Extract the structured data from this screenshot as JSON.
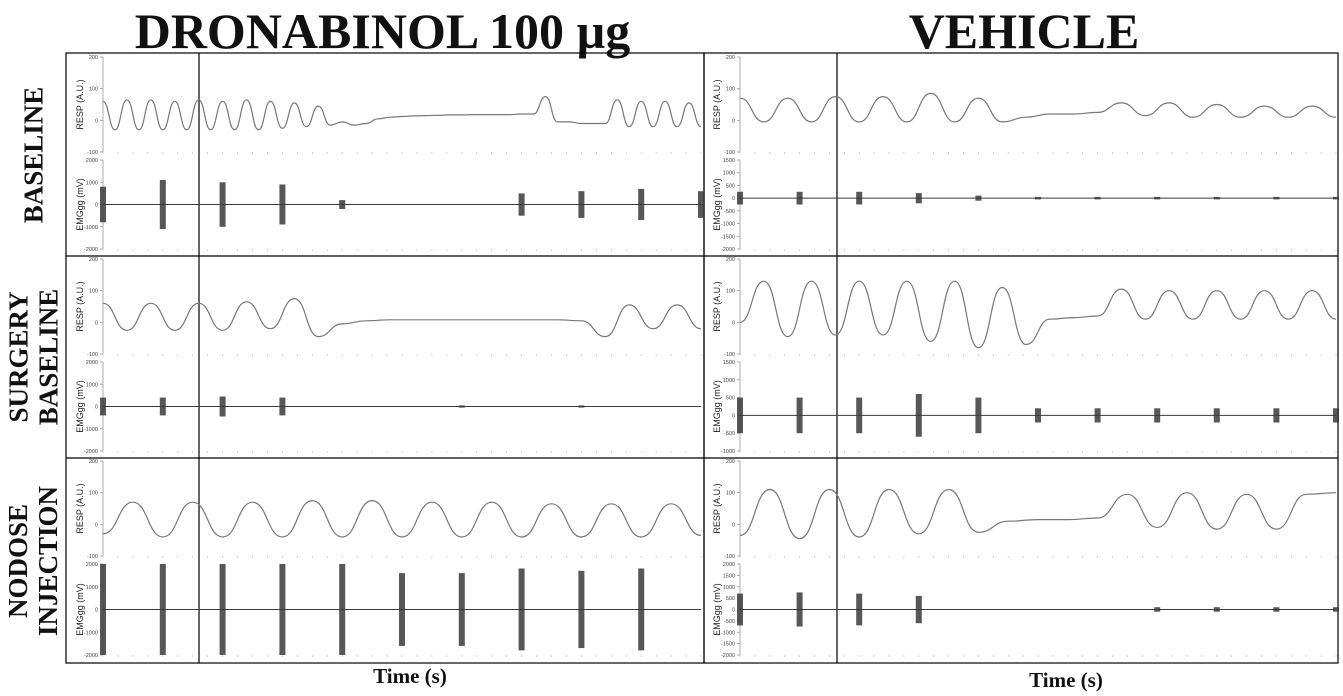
{
  "columns": [
    {
      "title": "DRONABINOL 100 µg",
      "xlabel": "Time (s)"
    },
    {
      "title": "VEHICLE",
      "xlabel": "Time (s)"
    }
  ],
  "rows": [
    {
      "label_lines": [
        "BASELINE"
      ]
    },
    {
      "label_lines": [
        "SURGERY",
        "BASELINE"
      ]
    },
    {
      "label_lines": [
        "NODOSE",
        "INJECTION"
      ]
    }
  ],
  "colors": {
    "trace": "#777777",
    "emg": "#3a3a3a",
    "frame": "#000000",
    "grid": "#c8c8c8"
  },
  "chart_data": [
    {
      "type": "line",
      "panel": "dronabinol-baseline-resp",
      "ylabel": "RESP (A.U.)",
      "ylim": [
        -100,
        200
      ],
      "yticks": [
        -100,
        0,
        100,
        200
      ],
      "x": [
        0,
        0.02,
        0.04,
        0.06,
        0.08,
        0.1,
        0.12,
        0.14,
        0.16,
        0.18,
        0.2,
        0.22,
        0.24,
        0.26,
        0.28,
        0.3,
        0.32,
        0.34,
        0.36,
        0.38,
        0.4,
        0.42,
        0.44,
        0.46,
        0.48,
        0.5,
        0.52,
        0.54,
        0.56,
        0.58,
        0.6,
        0.62,
        0.64,
        0.66,
        0.68,
        0.7,
        0.72,
        0.74,
        0.76,
        0.78,
        0.8,
        0.82,
        0.84,
        0.86,
        0.88,
        0.9,
        0.92,
        0.94,
        0.96,
        0.98,
        1
      ],
      "y": [
        60,
        -30,
        65,
        -30,
        65,
        -30,
        60,
        -30,
        65,
        -30,
        60,
        -30,
        65,
        -30,
        60,
        -25,
        55,
        -20,
        45,
        -15,
        -5,
        -15,
        -10,
        5,
        10,
        12,
        14,
        15,
        16,
        17,
        17,
        18,
        18,
        18,
        18,
        20,
        20,
        75,
        -5,
        -5,
        -10,
        -10,
        -10,
        65,
        -20,
        60,
        -20,
        60,
        -20,
        55,
        -20
      ]
    },
    {
      "type": "line",
      "panel": "dronabinol-baseline-emg",
      "ylabel": "EMGgg (mV)",
      "ylim": [
        -2000,
        2000
      ],
      "yticks": [
        -2000,
        -1000,
        0,
        1000,
        2000
      ],
      "x": [
        0,
        0.1,
        0.2,
        0.3,
        0.4,
        0.5,
        0.6,
        0.7,
        0.8,
        0.9,
        1
      ],
      "y": [
        800,
        1100,
        1000,
        900,
        200,
        0,
        0,
        500,
        600,
        700,
        600
      ]
    },
    {
      "type": "line",
      "panel": "dronabinol-surgery-resp",
      "ylabel": "RESP (A.U.)",
      "ylim": [
        -100,
        200
      ],
      "yticks": [
        -100,
        0,
        100,
        200
      ],
      "x": [
        0,
        0.04,
        0.08,
        0.12,
        0.16,
        0.2,
        0.24,
        0.28,
        0.32,
        0.36,
        0.4,
        0.44,
        0.48,
        0.52,
        0.56,
        0.6,
        0.64,
        0.68,
        0.72,
        0.76,
        0.8,
        0.84,
        0.88,
        0.92,
        0.96,
        1
      ],
      "y": [
        60,
        -25,
        60,
        -25,
        60,
        -25,
        65,
        -20,
        75,
        -45,
        -5,
        5,
        8,
        8,
        8,
        8,
        8,
        8,
        8,
        8,
        5,
        -45,
        55,
        -20,
        55,
        -20
      ]
    },
    {
      "type": "line",
      "panel": "dronabinol-surgery-emg",
      "ylabel": "EMGgg (mV)",
      "ylim": [
        -2000,
        2000
      ],
      "yticks": [
        -2000,
        -1000,
        0,
        1000,
        2000
      ],
      "x": [
        0,
        0.1,
        0.2,
        0.3,
        0.4,
        0.5,
        0.6,
        0.7,
        0.8,
        0.9,
        1
      ],
      "y": [
        400,
        400,
        450,
        400,
        0,
        0,
        50,
        0,
        50,
        0,
        0
      ]
    },
    {
      "type": "line",
      "panel": "dronabinol-nodose-resp",
      "ylabel": "RESP (A.U.)",
      "ylim": [
        -100,
        200
      ],
      "yticks": [
        -100,
        0,
        100,
        200
      ],
      "x": [
        0,
        0.05,
        0.1,
        0.15,
        0.2,
        0.25,
        0.3,
        0.35,
        0.4,
        0.45,
        0.5,
        0.55,
        0.6,
        0.65,
        0.7,
        0.75,
        0.8,
        0.85,
        0.9,
        0.95,
        1
      ],
      "y": [
        -30,
        70,
        -40,
        70,
        -40,
        70,
        -40,
        75,
        -40,
        75,
        -40,
        70,
        -40,
        70,
        -40,
        65,
        -40,
        65,
        -40,
        65,
        -35
      ]
    },
    {
      "type": "line",
      "panel": "dronabinol-nodose-emg",
      "ylabel": "EMGgg (mV)",
      "ylim": [
        -2000,
        2000
      ],
      "yticks": [
        -2000,
        -1000,
        0,
        1000,
        2000
      ],
      "x": [
        0,
        0.1,
        0.2,
        0.3,
        0.4,
        0.5,
        0.6,
        0.7,
        0.8,
        0.9,
        1
      ],
      "y": [
        2000,
        2000,
        2100,
        2000,
        2200,
        1600,
        1600,
        1800,
        1700,
        1800,
        0
      ]
    },
    {
      "type": "line",
      "panel": "vehicle-baseline-resp",
      "ylabel": "RESP (A.U.)",
      "ylim": [
        -100,
        200
      ],
      "yticks": [
        -100,
        0,
        100,
        200
      ],
      "x": [
        0,
        0.04,
        0.08,
        0.12,
        0.16,
        0.2,
        0.24,
        0.28,
        0.32,
        0.36,
        0.4,
        0.44,
        0.48,
        0.52,
        0.56,
        0.6,
        0.64,
        0.68,
        0.72,
        0.76,
        0.8,
        0.84,
        0.88,
        0.92,
        0.96,
        1
      ],
      "y": [
        70,
        -5,
        70,
        -5,
        75,
        -5,
        75,
        -5,
        85,
        -5,
        70,
        -5,
        10,
        20,
        20,
        25,
        55,
        15,
        55,
        10,
        50,
        10,
        45,
        10,
        45,
        10
      ]
    },
    {
      "type": "line",
      "panel": "vehicle-baseline-emg",
      "ylabel": "EMGgg (mV)",
      "ylim": [
        -2000,
        1500
      ],
      "yticks": [
        -2000,
        -1500,
        -1000,
        -500,
        0,
        500,
        1000,
        1500
      ],
      "x": [
        0,
        0.1,
        0.2,
        0.3,
        0.4,
        0.5,
        0.6,
        0.7,
        0.8,
        0.9,
        1
      ],
      "y": [
        250,
        250,
        250,
        200,
        100,
        50,
        50,
        50,
        50,
        50,
        50
      ]
    },
    {
      "type": "line",
      "panel": "vehicle-surgery-resp",
      "ylabel": "RESP (A.U.)",
      "ylim": [
        -100,
        200
      ],
      "yticks": [
        -100,
        0,
        100,
        200
      ],
      "x": [
        0,
        0.04,
        0.08,
        0.12,
        0.16,
        0.2,
        0.24,
        0.28,
        0.32,
        0.36,
        0.4,
        0.44,
        0.48,
        0.52,
        0.56,
        0.6,
        0.64,
        0.68,
        0.72,
        0.76,
        0.8,
        0.84,
        0.88,
        0.92,
        0.96,
        1
      ],
      "y": [
        0,
        130,
        -45,
        130,
        -40,
        130,
        -40,
        130,
        -60,
        130,
        -80,
        110,
        -70,
        10,
        15,
        20,
        105,
        10,
        100,
        10,
        100,
        10,
        100,
        10,
        100,
        10
      ]
    },
    {
      "type": "line",
      "panel": "vehicle-surgery-emg",
      "ylabel": "EMGgg (mV)",
      "ylim": [
        -1000,
        1500
      ],
      "yticks": [
        -1000,
        -500,
        0,
        500,
        1000,
        1500
      ],
      "x": [
        0,
        0.1,
        0.2,
        0.3,
        0.4,
        0.5,
        0.6,
        0.7,
        0.8,
        0.9,
        1
      ],
      "y": [
        500,
        500,
        500,
        600,
        500,
        200,
        200,
        200,
        200,
        200,
        200
      ]
    },
    {
      "type": "line",
      "panel": "vehicle-nodose-resp",
      "ylabel": "RESP (A.U.)",
      "ylim": [
        -100,
        200
      ],
      "yticks": [
        -100,
        0,
        100,
        200
      ],
      "x": [
        0,
        0.05,
        0.1,
        0.15,
        0.2,
        0.25,
        0.3,
        0.35,
        0.4,
        0.45,
        0.5,
        0.55,
        0.6,
        0.65,
        0.7,
        0.75,
        0.8,
        0.85,
        0.9,
        0.95,
        1
      ],
      "y": [
        -35,
        110,
        -45,
        110,
        -40,
        110,
        -30,
        110,
        -25,
        10,
        15,
        15,
        20,
        95,
        -10,
        100,
        -15,
        95,
        -15,
        95,
        100
      ]
    },
    {
      "type": "line",
      "panel": "vehicle-nodose-emg",
      "ylabel": "EMGgg (mV)",
      "ylim": [
        -2000,
        2000
      ],
      "yticks": [
        -2000,
        -1500,
        -1000,
        -500,
        0,
        500,
        1000,
        1500,
        2000
      ],
      "x": [
        0,
        0.1,
        0.2,
        0.3,
        0.4,
        0.5,
        0.6,
        0.7,
        0.8,
        0.9,
        1
      ],
      "y": [
        700,
        750,
        700,
        600,
        0,
        0,
        0,
        100,
        100,
        100,
        100
      ]
    }
  ]
}
